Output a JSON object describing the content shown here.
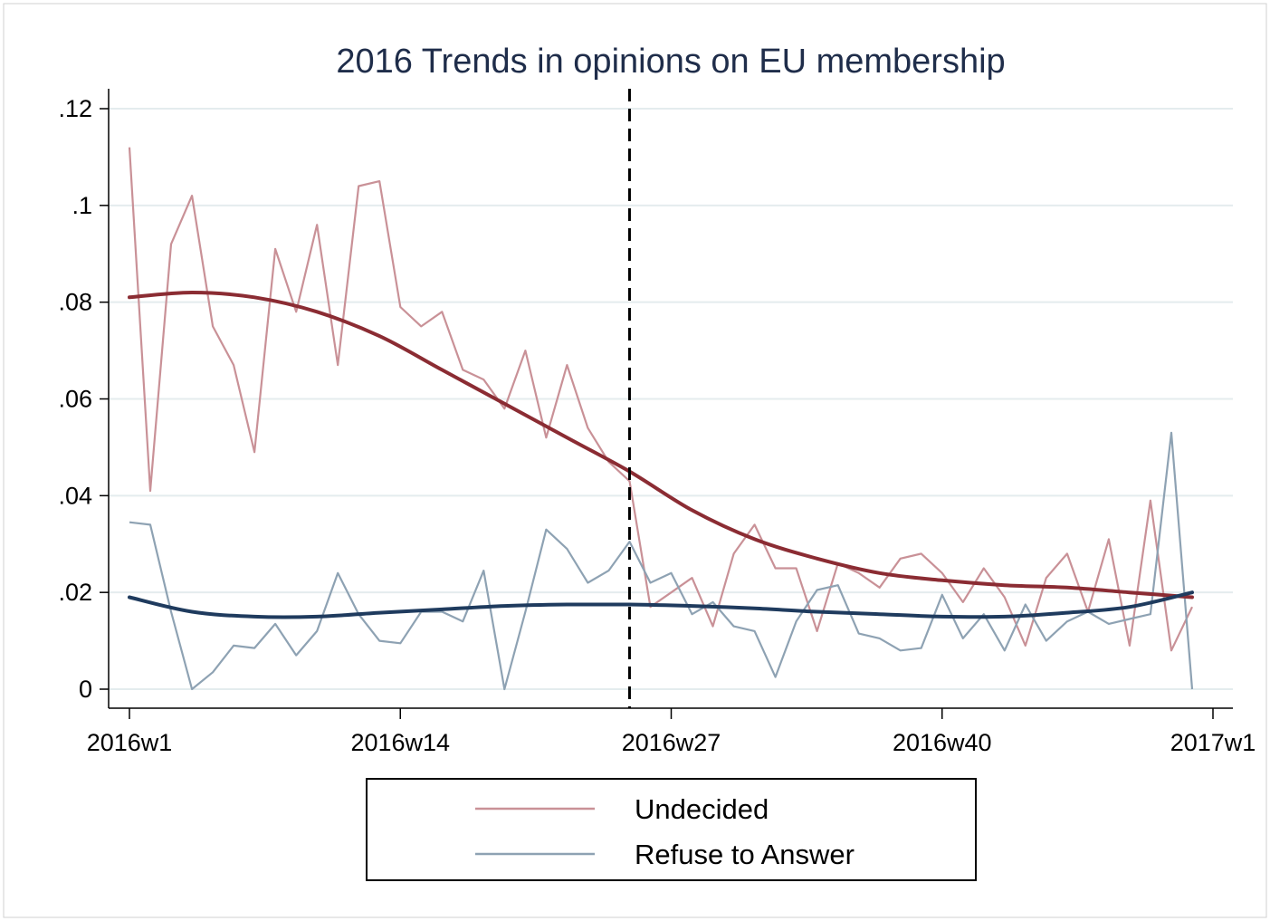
{
  "chart_data": {
    "type": "line",
    "title": "2016 Trends in opinions on EU membership",
    "xlabel": "",
    "ylabel": "",
    "xlim": [
      1,
      53
    ],
    "ylim": [
      0,
      0.12
    ],
    "x_ticks": [
      {
        "value": 1,
        "label": "2016w1"
      },
      {
        "value": 14,
        "label": "2016w14"
      },
      {
        "value": 27,
        "label": "2016w27"
      },
      {
        "value": 40,
        "label": "2016w40"
      },
      {
        "value": 53,
        "label": "2017w1"
      }
    ],
    "y_ticks": [
      {
        "value": 0,
        "label": "0"
      },
      {
        "value": 0.02,
        "label": ".02"
      },
      {
        "value": 0.04,
        "label": ".04"
      },
      {
        "value": 0.06,
        "label": ".06"
      },
      {
        "value": 0.08,
        "label": ".08"
      },
      {
        "value": 0.1,
        "label": ".1"
      },
      {
        "value": 0.12,
        "label": ".12"
      }
    ],
    "grid": true,
    "reference_line": {
      "x": 25,
      "style": "dashed",
      "color": "#000000"
    },
    "legend": {
      "placement": "bottom-center"
    },
    "x": [
      1,
      2,
      3,
      4,
      5,
      6,
      7,
      8,
      9,
      10,
      11,
      12,
      13,
      14,
      15,
      16,
      17,
      18,
      19,
      20,
      21,
      22,
      23,
      24,
      25,
      26,
      27,
      28,
      29,
      30,
      31,
      32,
      33,
      34,
      35,
      36,
      37,
      38,
      39,
      40,
      41,
      42,
      43,
      44,
      45,
      46,
      47,
      48,
      49,
      50,
      51,
      52
    ],
    "series": [
      {
        "name": "Undecided",
        "color": "#c99197",
        "values": [
          0.112,
          0.041,
          0.092,
          0.102,
          0.075,
          0.067,
          0.049,
          0.091,
          0.078,
          0.096,
          0.067,
          0.104,
          0.105,
          0.079,
          0.075,
          0.078,
          0.066,
          0.064,
          0.058,
          0.07,
          0.052,
          0.067,
          0.054,
          0.047,
          0.043,
          0.017,
          0.02,
          0.023,
          0.013,
          0.028,
          0.034,
          0.025,
          0.025,
          0.012,
          0.026,
          0.024,
          0.021,
          0.027,
          0.028,
          0.024,
          0.018,
          0.025,
          0.019,
          0.009,
          0.023,
          0.028,
          0.016,
          0.031,
          0.009,
          0.039,
          0.008,
          0.017
        ]
      },
      {
        "name": "Refuse to Answer",
        "color": "#8ea2b3",
        "values": [
          0.0345,
          0.034,
          0.016,
          0.0,
          0.0035,
          0.009,
          0.0085,
          0.0135,
          0.007,
          0.012,
          0.024,
          0.0155,
          0.01,
          0.0095,
          0.016,
          0.016,
          0.014,
          0.0245,
          0.0,
          0.016,
          0.033,
          0.029,
          0.022,
          0.0245,
          0.0305,
          0.022,
          0.024,
          0.0155,
          0.018,
          0.013,
          0.012,
          0.0025,
          0.014,
          0.0205,
          0.0215,
          0.0115,
          0.0105,
          0.008,
          0.0085,
          0.0195,
          0.0105,
          0.0155,
          0.008,
          0.0175,
          0.01,
          0.014,
          0.016,
          0.0135,
          0.0145,
          0.0155,
          0.053,
          0.0
        ]
      }
    ],
    "trend_lines": [
      {
        "series": "Undecided",
        "color": "#8b2c33",
        "x": [
          1,
          4,
          7,
          10,
          13,
          16,
          19,
          22,
          25,
          28,
          31,
          34,
          37,
          40,
          43,
          46,
          49,
          52
        ],
        "values": [
          0.081,
          0.082,
          0.081,
          0.078,
          0.073,
          0.066,
          0.059,
          0.052,
          0.045,
          0.037,
          0.031,
          0.027,
          0.024,
          0.0225,
          0.0215,
          0.021,
          0.02,
          0.019
        ]
      },
      {
        "series": "Refuse to Answer",
        "color": "#1f3b5e",
        "x": [
          1,
          4,
          7,
          10,
          13,
          16,
          19,
          22,
          25,
          28,
          31,
          34,
          37,
          40,
          43,
          46,
          49,
          52
        ],
        "values": [
          0.019,
          0.016,
          0.015,
          0.015,
          0.0158,
          0.0165,
          0.0172,
          0.0175,
          0.0175,
          0.0172,
          0.0167,
          0.016,
          0.0155,
          0.015,
          0.015,
          0.0158,
          0.017,
          0.02
        ]
      }
    ]
  }
}
